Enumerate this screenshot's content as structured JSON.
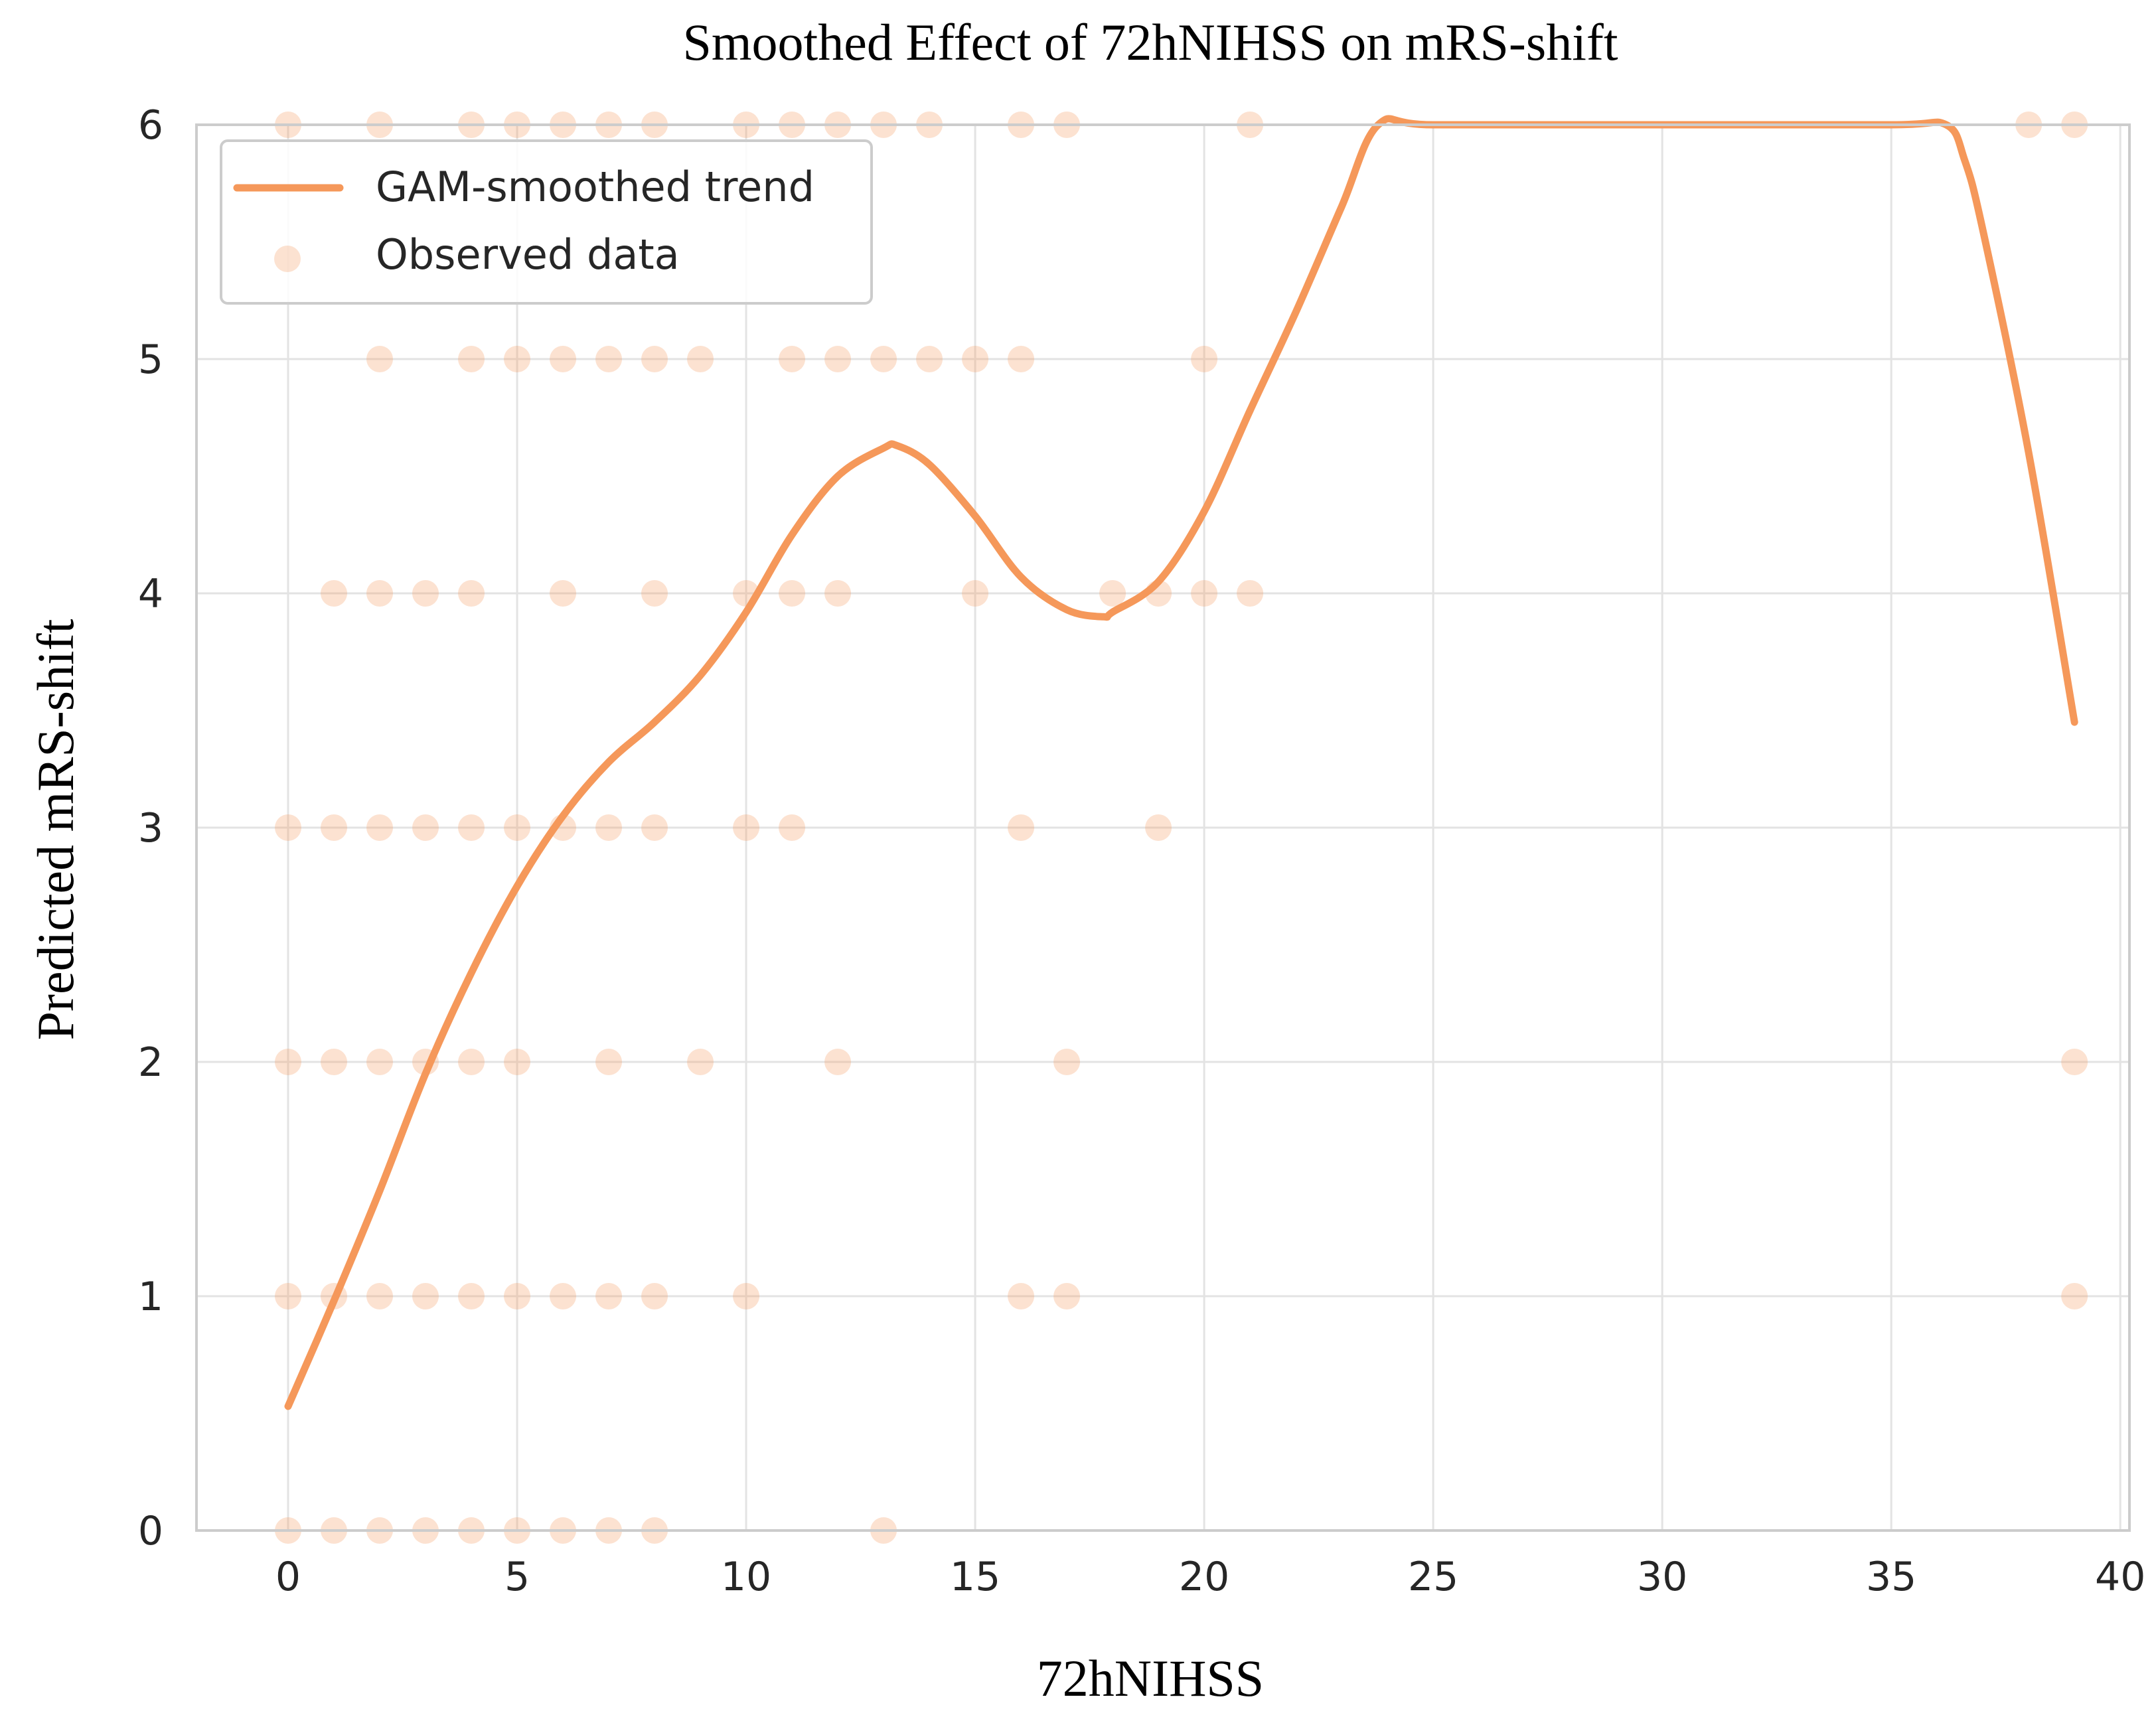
{
  "chart_data": {
    "type": "line",
    "title": "Smoothed Effect of 72hNIHSS on mRS-shift",
    "xlabel": "72hNIHSS",
    "ylabel": "Predicted mRS-shift",
    "xlim": [
      -2,
      40.2
    ],
    "ylim": [
      0,
      6
    ],
    "x_ticks": [
      0,
      5,
      10,
      15,
      20,
      25,
      30,
      35,
      40
    ],
    "y_ticks": [
      0,
      1,
      2,
      3,
      4,
      5,
      6
    ],
    "grid": true,
    "legend_placement": "top-left",
    "colors": {
      "line": "#f5985a",
      "points": "#f5985a",
      "grid": "#e3e3e3",
      "frame": "#cccccc"
    },
    "series": [
      {
        "name": "GAM-smoothed trend",
        "kind": "line",
        "x": [
          0,
          1,
          2,
          3,
          4,
          5,
          6,
          7,
          8,
          9,
          10,
          11,
          12,
          13,
          13.3,
          14,
          15,
          16,
          17,
          17.8,
          18,
          19,
          20,
          21,
          22,
          23,
          23.8,
          25,
          30,
          35,
          36.2,
          36.6,
          37,
          38,
          39
        ],
        "y": [
          0.53,
          0.98,
          1.45,
          1.95,
          2.38,
          2.75,
          3.05,
          3.28,
          3.45,
          3.65,
          3.92,
          4.25,
          4.5,
          4.62,
          4.63,
          4.55,
          4.33,
          4.07,
          3.93,
          3.9,
          3.92,
          4.05,
          4.35,
          4.78,
          5.2,
          5.65,
          6.0,
          6.0,
          6.0,
          6.0,
          6.0,
          5.85,
          5.55,
          4.6,
          3.45
        ]
      },
      {
        "name": "Observed data",
        "kind": "scatter",
        "points": [
          [
            0,
            6
          ],
          [
            2,
            6
          ],
          [
            4,
            6
          ],
          [
            5,
            6
          ],
          [
            6,
            6
          ],
          [
            7,
            6
          ],
          [
            8,
            6
          ],
          [
            10,
            6
          ],
          [
            11,
            6
          ],
          [
            12,
            6
          ],
          [
            13,
            6
          ],
          [
            14,
            6
          ],
          [
            16,
            6
          ],
          [
            17,
            6
          ],
          [
            21,
            6
          ],
          [
            38,
            6
          ],
          [
            39,
            6
          ],
          [
            2,
            5
          ],
          [
            4,
            5
          ],
          [
            5,
            5
          ],
          [
            6,
            5
          ],
          [
            7,
            5
          ],
          [
            8,
            5
          ],
          [
            9,
            5
          ],
          [
            11,
            5
          ],
          [
            12,
            5
          ],
          [
            13,
            5
          ],
          [
            14,
            5
          ],
          [
            15,
            5
          ],
          [
            16,
            5
          ],
          [
            20,
            5
          ],
          [
            1,
            4
          ],
          [
            2,
            4
          ],
          [
            3,
            4
          ],
          [
            4,
            4
          ],
          [
            6,
            4
          ],
          [
            8,
            4
          ],
          [
            10,
            4
          ],
          [
            11,
            4
          ],
          [
            12,
            4
          ],
          [
            15,
            4
          ],
          [
            18,
            4
          ],
          [
            19,
            4
          ],
          [
            20,
            4
          ],
          [
            21,
            4
          ],
          [
            0,
            3
          ],
          [
            1,
            3
          ],
          [
            2,
            3
          ],
          [
            3,
            3
          ],
          [
            4,
            3
          ],
          [
            5,
            3
          ],
          [
            6,
            3
          ],
          [
            7,
            3
          ],
          [
            8,
            3
          ],
          [
            10,
            3
          ],
          [
            11,
            3
          ],
          [
            16,
            3
          ],
          [
            19,
            3
          ],
          [
            0,
            2
          ],
          [
            1,
            2
          ],
          [
            2,
            2
          ],
          [
            3,
            2
          ],
          [
            4,
            2
          ],
          [
            5,
            2
          ],
          [
            7,
            2
          ],
          [
            9,
            2
          ],
          [
            12,
            2
          ],
          [
            17,
            2
          ],
          [
            39,
            2
          ],
          [
            0,
            1
          ],
          [
            1,
            1
          ],
          [
            2,
            1
          ],
          [
            3,
            1
          ],
          [
            4,
            1
          ],
          [
            5,
            1
          ],
          [
            6,
            1
          ],
          [
            7,
            1
          ],
          [
            8,
            1
          ],
          [
            10,
            1
          ],
          [
            16,
            1
          ],
          [
            17,
            1
          ],
          [
            39,
            1
          ],
          [
            0,
            0
          ],
          [
            1,
            0
          ],
          [
            2,
            0
          ],
          [
            3,
            0
          ],
          [
            4,
            0
          ],
          [
            5,
            0
          ],
          [
            6,
            0
          ],
          [
            7,
            0
          ],
          [
            8,
            0
          ],
          [
            13,
            0
          ]
        ]
      }
    ]
  }
}
